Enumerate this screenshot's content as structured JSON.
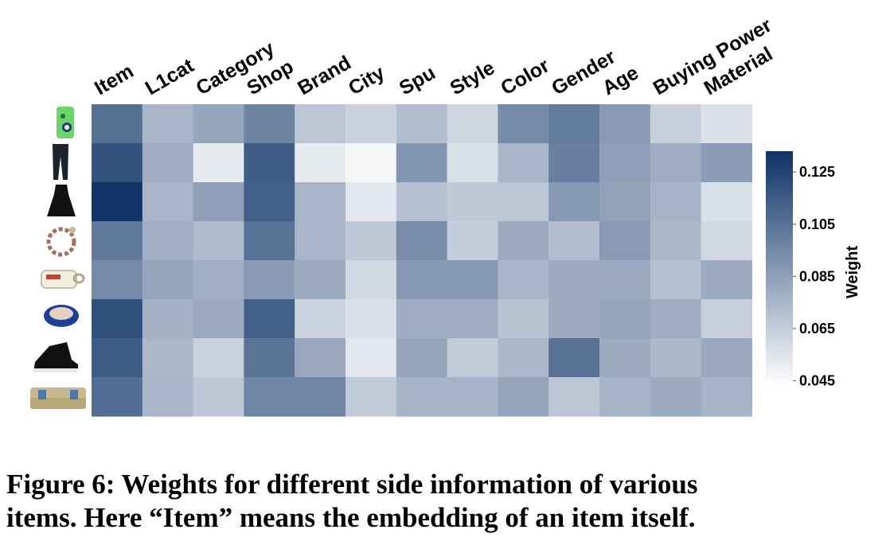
{
  "chart_data": {
    "type": "heatmap",
    "columns": [
      "Item",
      "L1cat",
      "Category",
      "Shop",
      "Brand",
      "City",
      "Spu",
      "Style",
      "Color",
      "Gender",
      "Age",
      "Buying Power",
      "Material"
    ],
    "rows": [
      "phone case",
      "trousers",
      "dress",
      "bracelet",
      "mug",
      "bowl",
      "sneaker",
      "sofa"
    ],
    "values": [
      [
        0.106,
        0.075,
        0.082,
        0.097,
        0.068,
        0.063,
        0.072,
        0.061,
        0.094,
        0.101,
        0.087,
        0.064,
        0.056
      ],
      [
        0.119,
        0.079,
        0.052,
        0.114,
        0.052,
        0.047,
        0.089,
        0.057,
        0.075,
        0.099,
        0.085,
        0.079,
        0.086
      ],
      [
        0.132,
        0.075,
        0.085,
        0.113,
        0.075,
        0.053,
        0.071,
        0.067,
        0.068,
        0.088,
        0.084,
        0.076,
        0.057
      ],
      [
        0.102,
        0.078,
        0.073,
        0.105,
        0.075,
        0.067,
        0.093,
        0.065,
        0.08,
        0.072,
        0.087,
        0.074,
        0.06
      ],
      [
        0.094,
        0.082,
        0.078,
        0.087,
        0.08,
        0.06,
        0.088,
        0.088,
        0.075,
        0.08,
        0.08,
        0.071,
        0.08
      ],
      [
        0.12,
        0.077,
        0.08,
        0.113,
        0.062,
        0.056,
        0.079,
        0.079,
        0.069,
        0.08,
        0.083,
        0.079,
        0.064
      ],
      [
        0.115,
        0.074,
        0.063,
        0.104,
        0.081,
        0.053,
        0.083,
        0.066,
        0.074,
        0.105,
        0.08,
        0.074,
        0.081
      ],
      [
        0.107,
        0.075,
        0.067,
        0.096,
        0.096,
        0.066,
        0.076,
        0.076,
        0.082,
        0.068,
        0.076,
        0.08,
        0.076
      ]
    ],
    "colorbar": {
      "title": "Weight",
      "ticks": [
        0.125,
        0.105,
        0.085,
        0.065,
        0.045
      ],
      "tick_labels": [
        "0.125",
        "0.105",
        "0.085",
        "0.065",
        "0.045"
      ],
      "range": [
        0.043,
        0.133
      ],
      "colors": [
        "#ffffff",
        "#0d3266"
      ]
    }
  },
  "caption": {
    "line1": "Figure 6: Weights for different side information of various",
    "line2": "items. Here “Item” means the embedding of an item itself."
  }
}
